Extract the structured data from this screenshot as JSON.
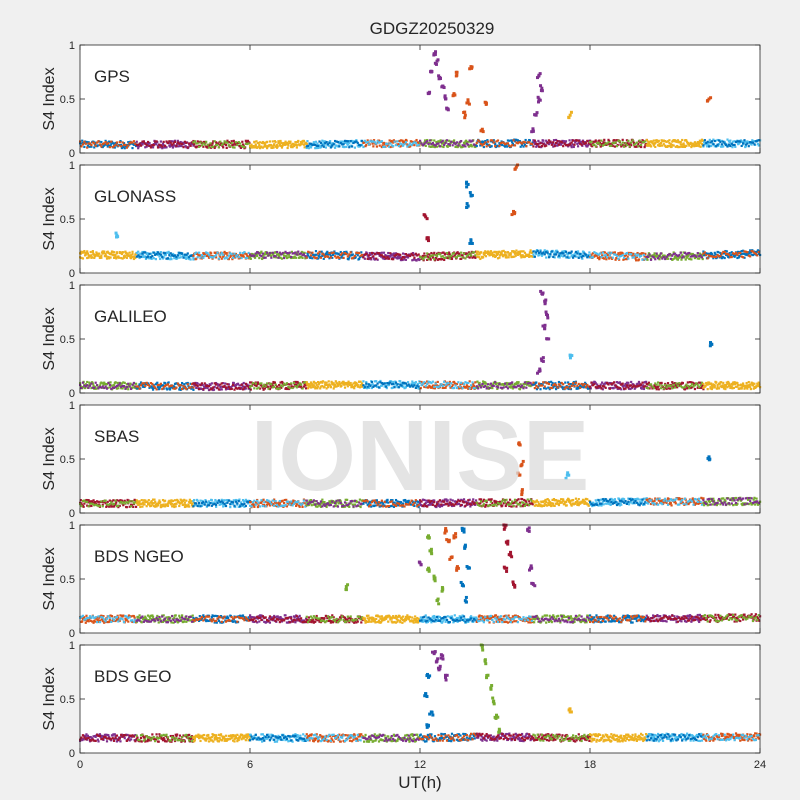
{
  "figure": {
    "title": "GDGZ20250329",
    "xlabel": "UT(h)",
    "watermark": "IONISE"
  },
  "chart_data": {
    "type": "scatter",
    "x_range": [
      0,
      24
    ],
    "x_ticks": [
      0,
      6,
      12,
      18,
      24
    ],
    "x_tick_labels": [
      "0",
      "6",
      "12",
      "18",
      "24"
    ],
    "y_range": [
      0,
      1
    ],
    "y_ticks": [
      0,
      0.5,
      1
    ],
    "y_tick_labels": [
      "0",
      "0.5",
      "1"
    ],
    "ylabel": "S4 Index",
    "grid": false,
    "palette": [
      "#0072BD",
      "#D95319",
      "#EDB120",
      "#7E2F8E",
      "#77AC30",
      "#4DBEEE",
      "#A2142F"
    ],
    "panels": [
      {
        "label": "GPS",
        "baseline": [
          [
            0,
            0.08
          ],
          [
            8,
            0.08
          ],
          [
            12,
            0.09
          ],
          [
            16,
            0.09
          ],
          [
            24,
            0.09
          ]
        ],
        "spikes": [
          {
            "color": "#7E2F8E",
            "points": [
              [
                12.3,
                0.55
              ],
              [
                12.4,
                0.75
              ],
              [
                12.5,
                0.92
              ],
              [
                12.6,
                0.85
              ],
              [
                12.7,
                0.7
              ],
              [
                12.8,
                0.62
              ],
              [
                12.9,
                0.5
              ],
              [
                13.0,
                0.4
              ]
            ]
          },
          {
            "color": "#D95319",
            "points": [
              [
                13.2,
                0.55
              ],
              [
                13.3,
                0.72
              ],
              [
                13.8,
                0.8
              ],
              [
                13.7,
                0.47
              ],
              [
                13.6,
                0.35
              ],
              [
                14.3,
                0.47
              ],
              [
                14.2,
                0.22
              ]
            ]
          },
          {
            "color": "#7E2F8E",
            "points": [
              [
                16.2,
                0.72
              ],
              [
                16.3,
                0.6
              ],
              [
                16.2,
                0.5
              ],
              [
                16.1,
                0.35
              ],
              [
                16.0,
                0.2
              ]
            ]
          },
          {
            "color": "#EDB120",
            "points": [
              [
                17.3,
                0.35
              ]
            ]
          },
          {
            "color": "#D95319",
            "points": [
              [
                22.2,
                0.5
              ]
            ]
          }
        ]
      },
      {
        "label": "GLONASS",
        "baseline": [
          [
            0,
            0.17
          ],
          [
            4,
            0.16
          ],
          [
            8,
            0.17
          ],
          [
            12,
            0.15
          ],
          [
            16,
            0.18
          ],
          [
            20,
            0.15
          ],
          [
            24,
            0.18
          ]
        ],
        "spikes": [
          {
            "color": "#A2142F",
            "points": [
              [
                12.2,
                0.52
              ],
              [
                12.3,
                0.3
              ]
            ]
          },
          {
            "color": "#0072BD",
            "points": [
              [
                13.7,
                0.82
              ],
              [
                13.8,
                0.72
              ],
              [
                13.7,
                0.62
              ],
              [
                13.8,
                0.3
              ]
            ]
          },
          {
            "color": "#D95319",
            "points": [
              [
                15.3,
                0.57
              ],
              [
                15.4,
                0.98
              ]
            ]
          },
          {
            "color": "#4DBEEE",
            "points": [
              [
                1.3,
                0.35
              ]
            ]
          }
        ]
      },
      {
        "label": "GALILEO",
        "baseline": [
          [
            0,
            0.07
          ],
          [
            5,
            0.06
          ],
          [
            10,
            0.08
          ],
          [
            16,
            0.07
          ],
          [
            24,
            0.07
          ]
        ],
        "spikes": [
          {
            "color": "#7E2F8E",
            "points": [
              [
                16.3,
                0.92
              ],
              [
                16.4,
                0.85
              ],
              [
                16.5,
                0.72
              ],
              [
                16.4,
                0.6
              ],
              [
                16.5,
                0.5
              ],
              [
                16.3,
                0.3
              ],
              [
                16.2,
                0.2
              ]
            ]
          },
          {
            "color": "#4DBEEE",
            "points": [
              [
                17.3,
                0.35
              ]
            ]
          },
          {
            "color": "#0072BD",
            "points": [
              [
                22.3,
                0.45
              ]
            ]
          }
        ]
      },
      {
        "label": "SBAS",
        "baseline": [
          [
            0,
            0.09
          ],
          [
            12,
            0.09
          ],
          [
            18,
            0.1
          ],
          [
            24,
            0.11
          ]
        ],
        "spikes": [
          {
            "color": "#D95319",
            "points": [
              [
                15.5,
                0.65
              ],
              [
                15.6,
                0.45
              ],
              [
                15.5,
                0.35
              ],
              [
                15.6,
                0.2
              ]
            ]
          },
          {
            "color": "#0072BD",
            "points": [
              [
                22.2,
                0.52
              ]
            ]
          },
          {
            "color": "#4DBEEE",
            "points": [
              [
                17.2,
                0.35
              ]
            ]
          }
        ]
      },
      {
        "label": "BDS NGEO",
        "baseline": [
          [
            0,
            0.13
          ],
          [
            8,
            0.13
          ],
          [
            12,
            0.13
          ],
          [
            18,
            0.13
          ],
          [
            24,
            0.14
          ]
        ],
        "spikes": [
          {
            "color": "#77AC30",
            "points": [
              [
                12.3,
                0.9
              ],
              [
                12.4,
                0.75
              ],
              [
                12.3,
                0.6
              ],
              [
                12.5,
                0.5
              ],
              [
                12.8,
                0.4
              ],
              [
                12.6,
                0.3
              ],
              [
                9.4,
                0.43
              ]
            ]
          },
          {
            "color": "#D95319",
            "points": [
              [
                12.9,
                0.95
              ],
              [
                13.0,
                0.85
              ],
              [
                13.1,
                0.7
              ],
              [
                13.2,
                0.9
              ],
              [
                13.3,
                0.6
              ]
            ]
          },
          {
            "color": "#0072BD",
            "points": [
              [
                13.5,
                0.95
              ],
              [
                13.6,
                0.8
              ],
              [
                13.7,
                0.6
              ],
              [
                13.5,
                0.45
              ],
              [
                13.6,
                0.3
              ]
            ]
          },
          {
            "color": "#A2142F",
            "points": [
              [
                15.0,
                0.98
              ],
              [
                15.1,
                0.85
              ],
              [
                15.2,
                0.72
              ],
              [
                15.0,
                0.6
              ],
              [
                15.3,
                0.45
              ]
            ]
          },
          {
            "color": "#7E2F8E",
            "points": [
              [
                15.8,
                0.95
              ],
              [
                15.9,
                0.6
              ],
              [
                16.0,
                0.45
              ],
              [
                12.0,
                0.65
              ]
            ]
          }
        ]
      },
      {
        "label": "BDS GEO",
        "baseline": [
          [
            0,
            0.14
          ],
          [
            12,
            0.14
          ],
          [
            14,
            0.15
          ],
          [
            18,
            0.14
          ],
          [
            24,
            0.15
          ]
        ],
        "spikes": [
          {
            "color": "#7E2F8E",
            "points": [
              [
                12.5,
                0.92
              ],
              [
                12.6,
                0.85
              ],
              [
                12.7,
                0.78
              ],
              [
                12.8,
                0.9
              ],
              [
                12.9,
                0.7
              ]
            ]
          },
          {
            "color": "#0072BD",
            "points": [
              [
                12.3,
                0.7
              ],
              [
                12.2,
                0.55
              ],
              [
                12.4,
                0.38
              ],
              [
                12.3,
                0.25
              ]
            ]
          },
          {
            "color": "#77AC30",
            "points": [
              [
                14.2,
                0.98
              ],
              [
                14.3,
                0.85
              ],
              [
                14.4,
                0.72
              ],
              [
                14.5,
                0.6
              ],
              [
                14.6,
                0.48
              ],
              [
                14.7,
                0.35
              ],
              [
                14.8,
                0.22
              ]
            ]
          },
          {
            "color": "#EDB120",
            "points": [
              [
                17.3,
                0.38
              ]
            ]
          }
        ]
      }
    ]
  }
}
